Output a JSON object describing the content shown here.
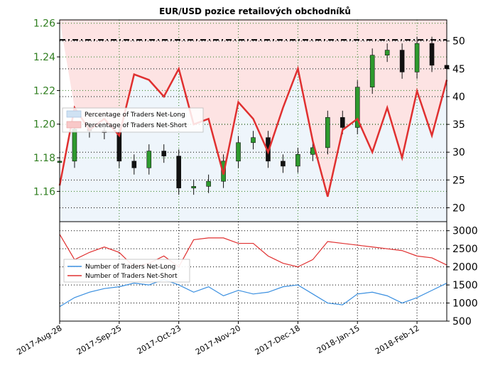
{
  "chart_data": [
    {
      "type": "line",
      "title": "EUR/USD pozice retailových obchodníků",
      "xlabel": "",
      "y_left_label": "",
      "y_right_label": "",
      "x_ticks": [
        "2017-Aug-28",
        "2017-Sep-25",
        "2017-Oct-23",
        "2017-Nov-20",
        "2017-Dec-18",
        "2018-Jan-15",
        "2018-Feb-12"
      ],
      "y_left_ticks": [
        "1.16",
        "1.18",
        "1.20",
        "1.22",
        "1.24",
        "1.26"
      ],
      "y_left_range": [
        1.142,
        1.262
      ],
      "y_right_ticks": [
        "20",
        "25",
        "30",
        "35",
        "40",
        "45",
        "50"
      ],
      "y_right_range": [
        17.5,
        53.8
      ],
      "reference_line": 50.2,
      "legend": {
        "placement": "upper-left",
        "entries": [
          "Percentage of Traders Net-Long",
          "Percentage of Traders Net-Short"
        ]
      },
      "grid": true,
      "x": [
        "2017-08-28",
        "2017-09-04",
        "2017-09-11",
        "2017-09-18",
        "2017-09-25",
        "2017-10-02",
        "2017-10-09",
        "2017-10-16",
        "2017-10-23",
        "2017-10-30",
        "2017-11-06",
        "2017-11-13",
        "2017-11-20",
        "2017-11-27",
        "2017-12-04",
        "2017-12-11",
        "2017-12-18",
        "2017-12-25",
        "2018-01-01",
        "2018-01-08",
        "2018-01-15",
        "2018-01-22",
        "2018-01-29",
        "2018-02-05",
        "2018-02-12",
        "2018-02-19",
        "2018-02-26"
      ],
      "price": [
        1.178,
        1.197,
        1.196,
        1.195,
        1.178,
        1.174,
        1.184,
        1.181,
        1.162,
        1.163,
        1.166,
        1.178,
        1.189,
        1.192,
        1.178,
        1.175,
        1.182,
        1.186,
        1.204,
        1.198,
        1.222,
        1.241,
        1.244,
        1.231,
        1.248,
        1.235,
        1.233
      ],
      "series": [
        {
          "name": "Percentage of Traders Net-Short",
          "values": [
            24,
            38,
            34,
            36,
            33,
            44,
            43,
            40,
            45,
            35,
            36,
            26,
            39,
            36,
            30,
            38,
            45,
            32,
            22,
            34,
            36,
            30,
            38,
            29,
            41,
            33,
            43
          ]
        }
      ]
    },
    {
      "type": "line",
      "title": "",
      "xlabel": "",
      "y_left_label": "",
      "y_right_label": "",
      "y_right_ticks": [
        "500",
        "1000",
        "1500",
        "2000",
        "2500",
        "3000"
      ],
      "y_right_range": [
        500,
        3250
      ],
      "legend": {
        "placement": "center-left",
        "entries": [
          "Number of Traders Net-Long",
          "Number of Traders Net-Short"
        ]
      },
      "grid": true,
      "x": [
        "2017-08-28",
        "2017-09-04",
        "2017-09-11",
        "2017-09-18",
        "2017-09-25",
        "2017-10-02",
        "2017-10-09",
        "2017-10-16",
        "2017-10-23",
        "2017-10-30",
        "2017-11-06",
        "2017-11-13",
        "2017-11-20",
        "2017-11-27",
        "2017-12-04",
        "2017-12-11",
        "2017-12-18",
        "2017-12-25",
        "2018-01-01",
        "2018-01-08",
        "2018-01-15",
        "2018-01-22",
        "2018-01-29",
        "2018-02-05",
        "2018-02-12",
        "2018-02-19",
        "2018-02-26"
      ],
      "series": [
        {
          "name": "Number of Traders Net-Long",
          "values": [
            900,
            1150,
            1300,
            1400,
            1450,
            1550,
            1500,
            1650,
            1500,
            1300,
            1450,
            1200,
            1350,
            1250,
            1300,
            1450,
            1500,
            1250,
            1000,
            950,
            1250,
            1300,
            1200,
            1000,
            1150,
            1350,
            1550
          ]
        },
        {
          "name": "Number of Traders Net-Short",
          "values": [
            2900,
            2200,
            2400,
            2550,
            2400,
            2000,
            2100,
            2300,
            2000,
            2750,
            2800,
            2800,
            2650,
            2650,
            2300,
            2100,
            2000,
            2200,
            2700,
            2650,
            2600,
            2550,
            2500,
            2450,
            2300,
            2250,
            2050
          ]
        }
      ]
    }
  ]
}
